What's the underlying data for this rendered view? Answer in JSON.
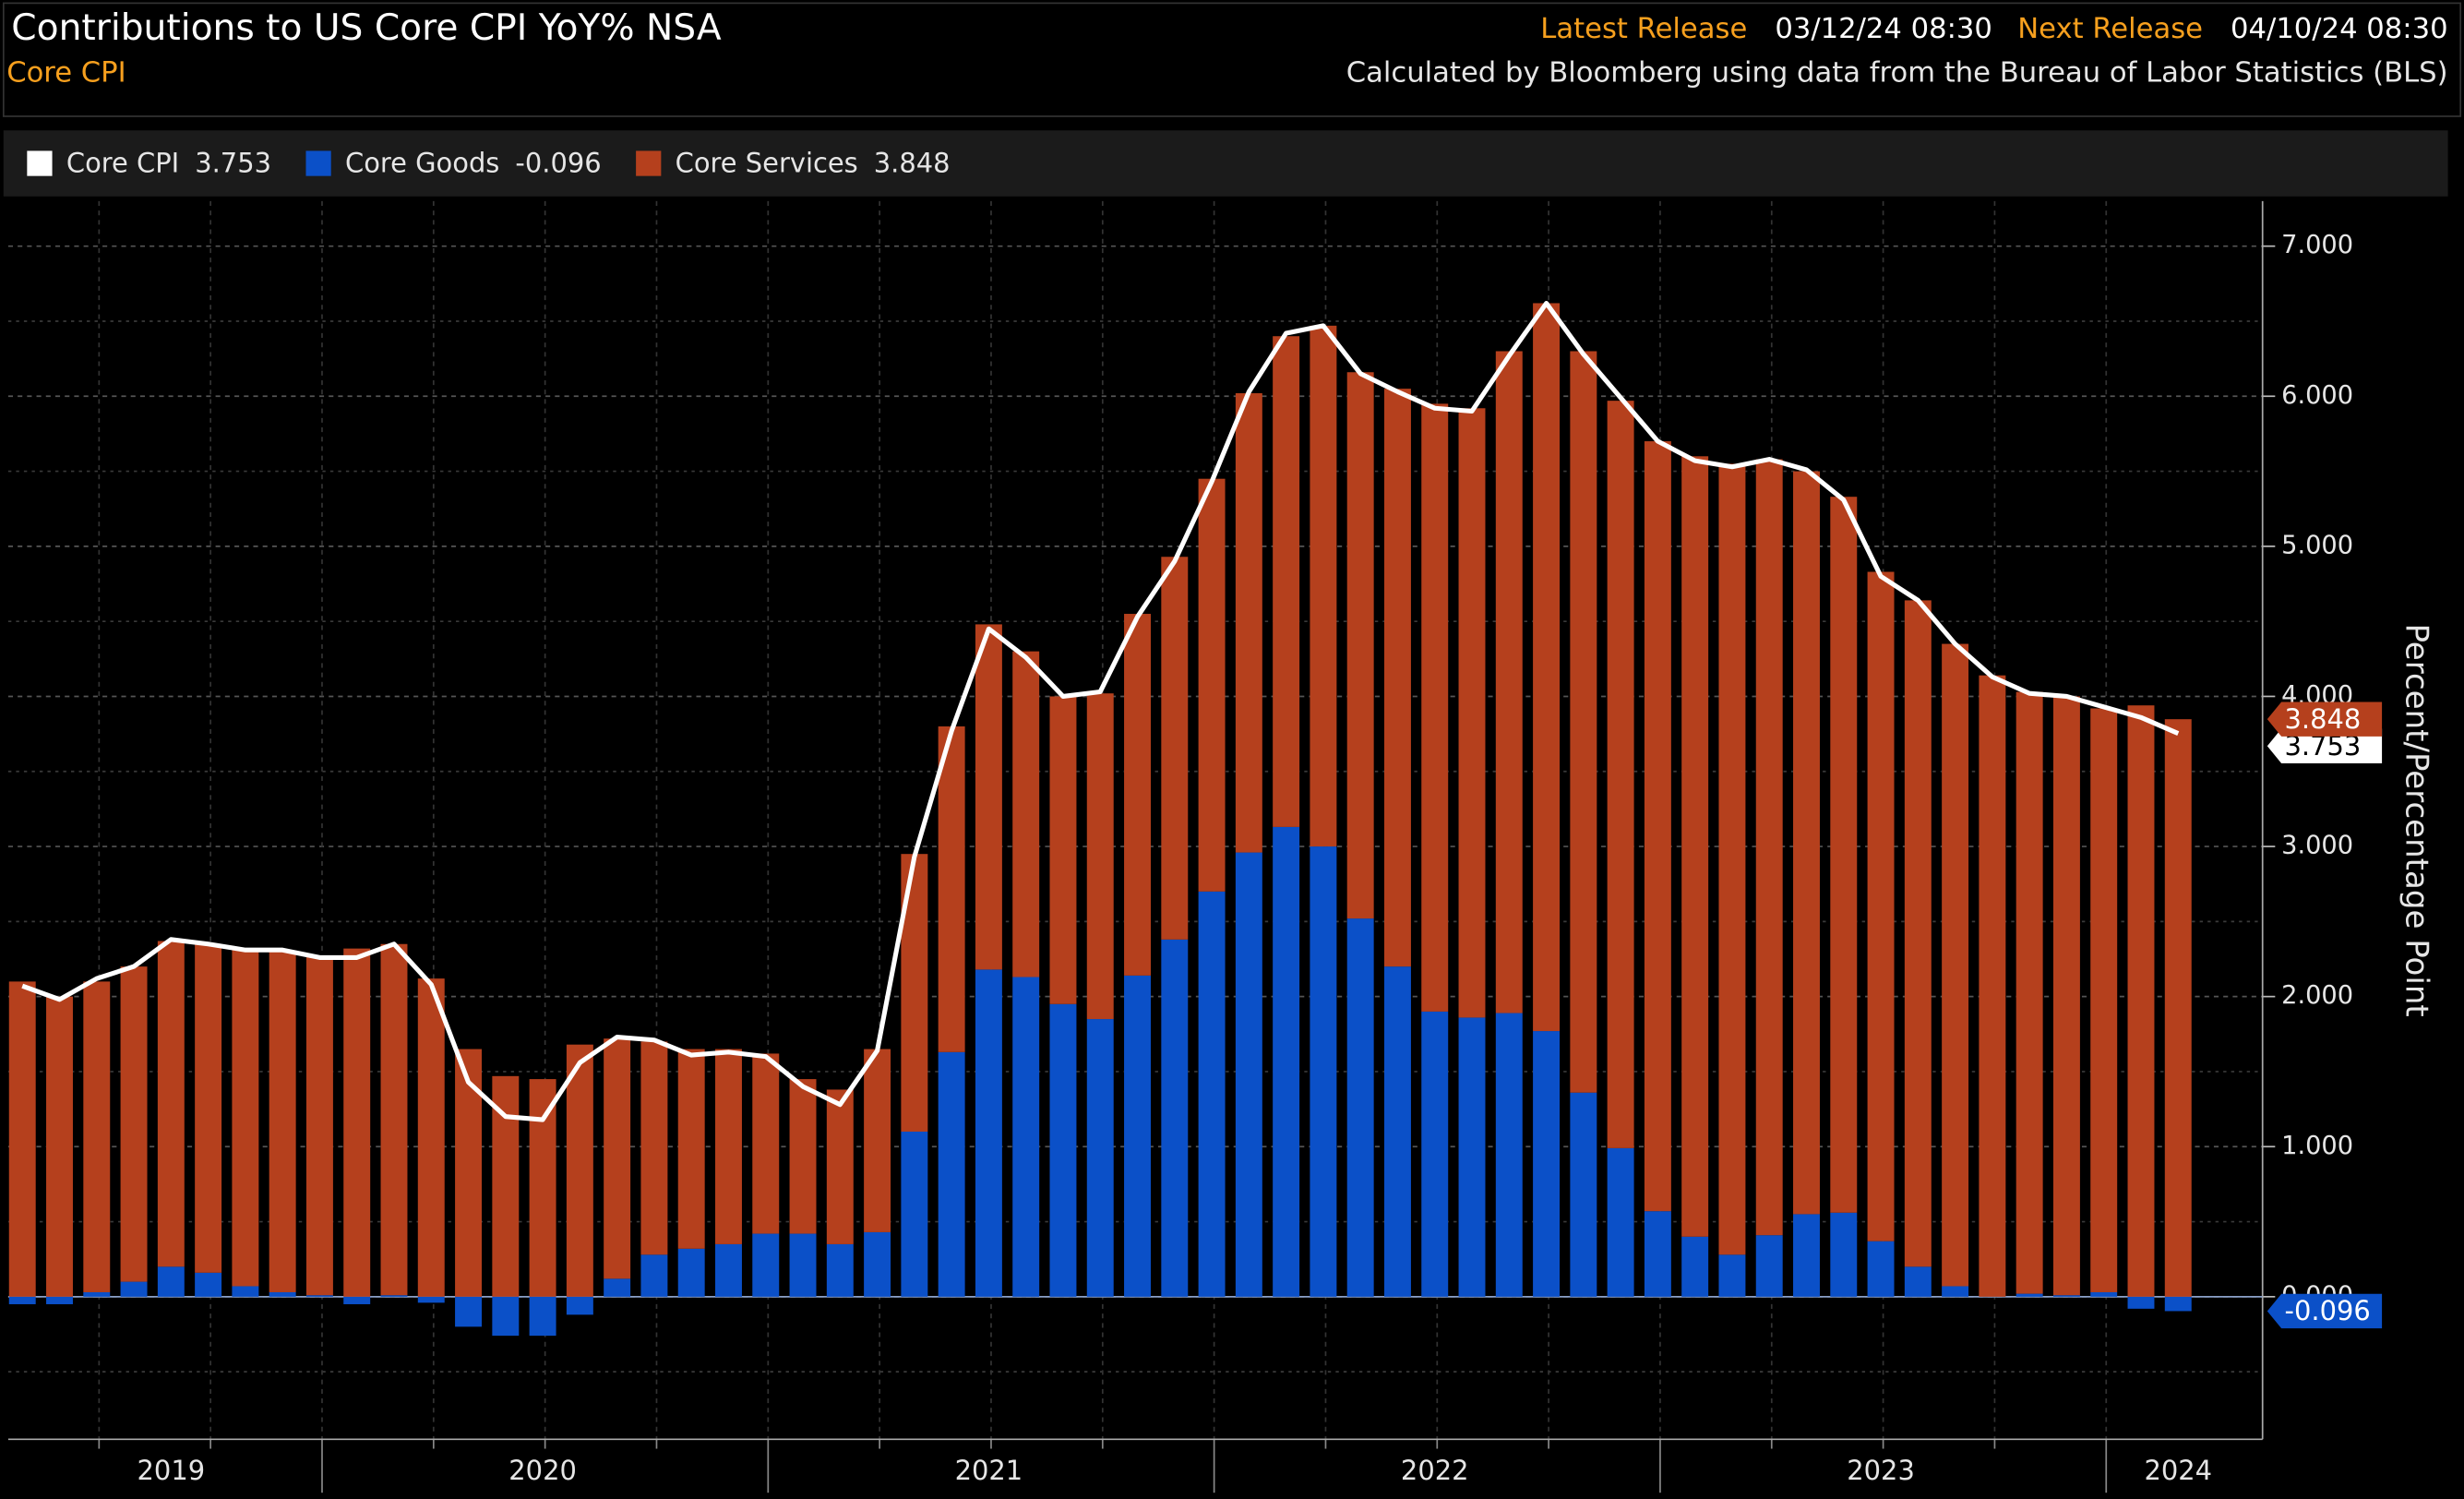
{
  "chart_data": {
    "type": "bar",
    "title": "Contributions to US Core CPI YoY% NSA",
    "subtitle": "Core CPI",
    "header": {
      "latest_release_label": "Latest Release",
      "latest_release": "03/12/24 08:30",
      "next_release_label": "Next Release",
      "next_release": "04/10/24 08:30",
      "source": "Calculated by Bloomberg using data from the Bureau of Labor Statistics (BLS)"
    },
    "y_axis_label": "Percent/Percentage Point",
    "categories": [
      null,
      null,
      null,
      null,
      "2019",
      null,
      null,
      null,
      null,
      null,
      null,
      null,
      null,
      null,
      "2020",
      null,
      null,
      null,
      null,
      null,
      null,
      null,
      null,
      null,
      null,
      null,
      "2021",
      null,
      null,
      null,
      null,
      null,
      null,
      null,
      null,
      null,
      null,
      null,
      "2022",
      null,
      null,
      null,
      null,
      null,
      null,
      null,
      null,
      null,
      null,
      null,
      "2023",
      null,
      null,
      null,
      null,
      null,
      null,
      null,
      "2024"
    ],
    "series": [
      {
        "name": "Core CPI",
        "type": "line",
        "color": "#ffffff",
        "values": [
          2.07,
          1.98,
          2.12,
          2.2,
          2.38,
          2.35,
          2.31,
          2.31,
          2.26,
          2.26,
          2.35,
          2.08,
          1.43,
          1.2,
          1.18,
          1.56,
          1.73,
          1.71,
          1.61,
          1.63,
          1.6,
          1.4,
          1.28,
          1.64,
          2.93,
          3.77,
          4.45,
          4.26,
          4.0,
          4.03,
          4.53,
          4.9,
          5.43,
          6.03,
          6.42,
          6.47,
          6.15,
          6.03,
          5.92,
          5.9,
          6.27,
          6.62,
          6.28,
          5.99,
          5.7,
          5.57,
          5.53,
          5.58,
          5.51,
          5.31,
          4.8,
          4.64,
          4.35,
          4.13,
          4.02,
          4.0,
          3.93,
          3.86,
          3.753
        ]
      },
      {
        "name": "Core Goods",
        "type": "bar",
        "color": "#0b50c8",
        "values": [
          -0.05,
          -0.05,
          0.03,
          0.1,
          0.2,
          0.16,
          0.07,
          0.03,
          0.01,
          -0.05,
          0.01,
          -0.04,
          -0.2,
          -0.26,
          -0.26,
          -0.12,
          0.12,
          0.28,
          0.32,
          0.35,
          0.42,
          0.42,
          0.35,
          0.43,
          1.1,
          1.63,
          2.18,
          2.13,
          1.95,
          1.85,
          2.14,
          2.38,
          2.7,
          2.96,
          3.13,
          3.0,
          2.52,
          2.2,
          1.9,
          1.86,
          1.89,
          1.77,
          1.36,
          0.99,
          0.57,
          0.4,
          0.28,
          0.41,
          0.55,
          0.56,
          0.37,
          0.2,
          0.07,
          0.0,
          0.02,
          0.01,
          0.03,
          -0.08,
          -0.096
        ]
      },
      {
        "name": "Core Services",
        "type": "bar",
        "color": "#b5401d",
        "values": [
          2.1,
          2.0,
          2.07,
          2.1,
          2.17,
          2.19,
          2.25,
          2.27,
          2.26,
          2.32,
          2.34,
          2.12,
          1.65,
          1.47,
          1.45,
          1.68,
          1.6,
          1.42,
          1.33,
          1.3,
          1.2,
          1.03,
          1.03,
          1.22,
          1.85,
          2.17,
          2.3,
          2.17,
          2.05,
          2.17,
          2.41,
          2.55,
          2.75,
          3.06,
          3.27,
          3.47,
          3.64,
          3.85,
          4.05,
          4.06,
          4.41,
          4.85,
          4.94,
          4.98,
          5.13,
          5.2,
          5.27,
          5.17,
          4.95,
          4.77,
          4.46,
          4.44,
          4.28,
          4.14,
          4.01,
          3.99,
          3.89,
          3.94,
          3.848
        ]
      }
    ],
    "ylim": [
      -0.95,
      7.3
    ],
    "yticks": [
      {
        "value": 0,
        "label": "0.000"
      },
      {
        "value": 1,
        "label": "1.000"
      },
      {
        "value": 2,
        "label": "2.000"
      },
      {
        "value": 3,
        "label": "3.000"
      },
      {
        "value": 4,
        "label": "4.000"
      },
      {
        "value": 5,
        "label": "5.000"
      },
      {
        "value": 6,
        "label": "6.000"
      },
      {
        "value": 7,
        "label": "7.000"
      }
    ],
    "yminorticks": [
      -0.5,
      0.5,
      1.5,
      2.5,
      3.5,
      4.5,
      5.5,
      6.5
    ],
    "grid": true,
    "legend": "top-left"
  }
}
